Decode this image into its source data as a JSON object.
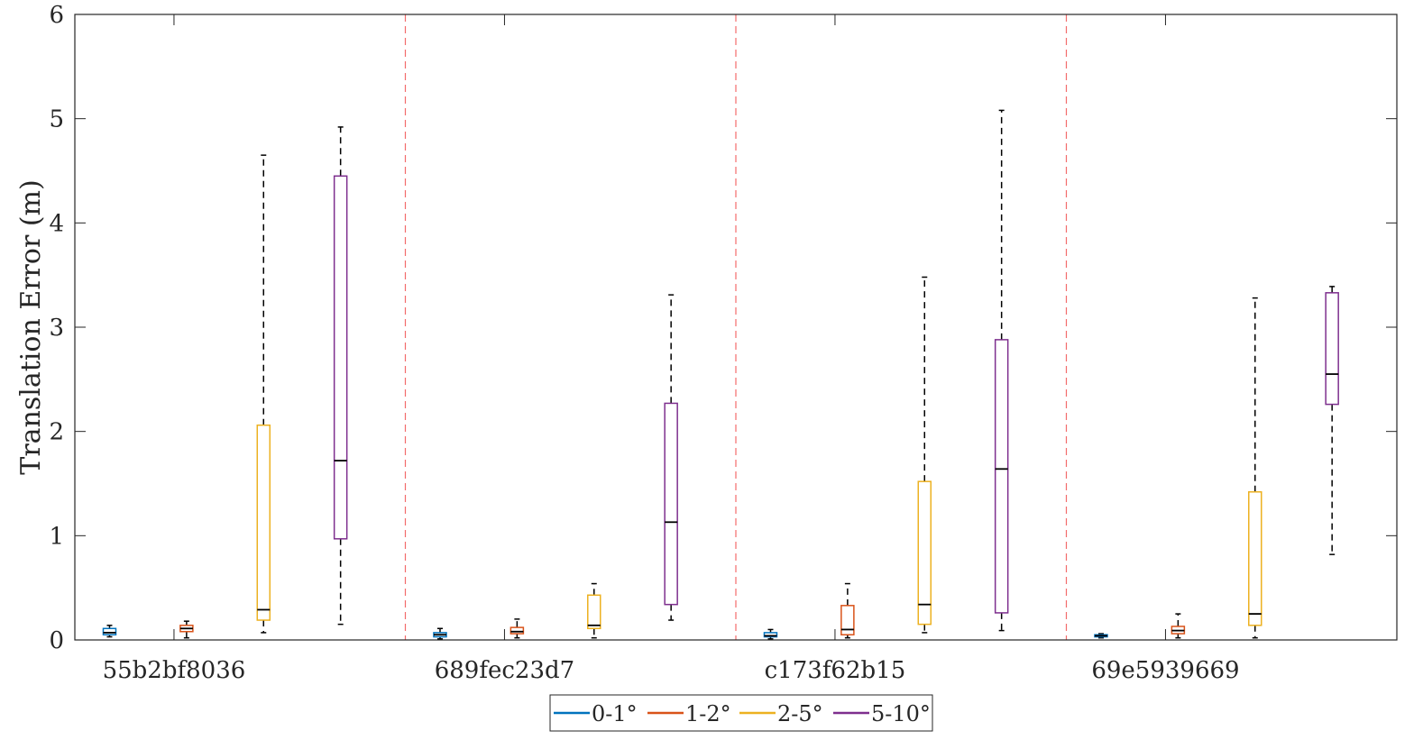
{
  "chart_data": {
    "type": "box",
    "title": "",
    "xlabel": "",
    "ylabel": "Translation Error (m)",
    "ylim": [
      0,
      6
    ],
    "yticks": [
      "0",
      "1",
      "2",
      "3",
      "4",
      "5",
      "6"
    ],
    "categories": [
      "55b2bf8036",
      "689fec23d7",
      "c173f62b15",
      "69e5939669"
    ],
    "grid": false,
    "group_separators": "red-dashed",
    "legend_position": "bottom-center",
    "series": [
      {
        "name": "0-1°",
        "color": "#0072BD",
        "boxes": [
          {
            "min": 0.03,
            "q1": 0.05,
            "median": 0.07,
            "q3": 0.11,
            "max": 0.14
          },
          {
            "min": 0.01,
            "q1": 0.03,
            "median": 0.05,
            "q3": 0.07,
            "max": 0.11
          },
          {
            "min": 0.01,
            "q1": 0.03,
            "median": 0.04,
            "q3": 0.07,
            "max": 0.1
          },
          {
            "min": 0.02,
            "q1": 0.03,
            "median": 0.04,
            "q3": 0.05,
            "max": 0.06
          }
        ]
      },
      {
        "name": "1-2°",
        "color": "#D95319",
        "boxes": [
          {
            "min": 0.02,
            "q1": 0.08,
            "median": 0.11,
            "q3": 0.14,
            "max": 0.18
          },
          {
            "min": 0.02,
            "q1": 0.06,
            "median": 0.08,
            "q3": 0.12,
            "max": 0.2
          },
          {
            "min": 0.02,
            "q1": 0.05,
            "median": 0.1,
            "q3": 0.33,
            "max": 0.54
          },
          {
            "min": 0.02,
            "q1": 0.06,
            "median": 0.09,
            "q3": 0.13,
            "max": 0.25
          }
        ]
      },
      {
        "name": "2-5°",
        "color": "#EDB120",
        "boxes": [
          {
            "min": 0.07,
            "q1": 0.19,
            "median": 0.29,
            "q3": 2.06,
            "max": 4.65
          },
          {
            "min": 0.02,
            "q1": 0.11,
            "median": 0.14,
            "q3": 0.43,
            "max": 0.54
          },
          {
            "min": 0.07,
            "q1": 0.15,
            "median": 0.34,
            "q3": 1.52,
            "max": 3.48
          },
          {
            "min": 0.02,
            "q1": 0.14,
            "median": 0.25,
            "q3": 1.42,
            "max": 3.28
          }
        ]
      },
      {
        "name": "5-10°",
        "color": "#7E2F8E",
        "boxes": [
          {
            "min": 0.15,
            "q1": 0.97,
            "median": 1.72,
            "q3": 4.45,
            "max": 4.92
          },
          {
            "min": 0.19,
            "q1": 0.34,
            "median": 1.13,
            "q3": 2.27,
            "max": 3.31
          },
          {
            "min": 0.09,
            "q1": 0.26,
            "median": 1.64,
            "q3": 2.88,
            "max": 5.08
          },
          {
            "min": 0.82,
            "q1": 2.26,
            "median": 2.55,
            "q3": 3.33,
            "max": 3.39
          }
        ]
      }
    ]
  }
}
